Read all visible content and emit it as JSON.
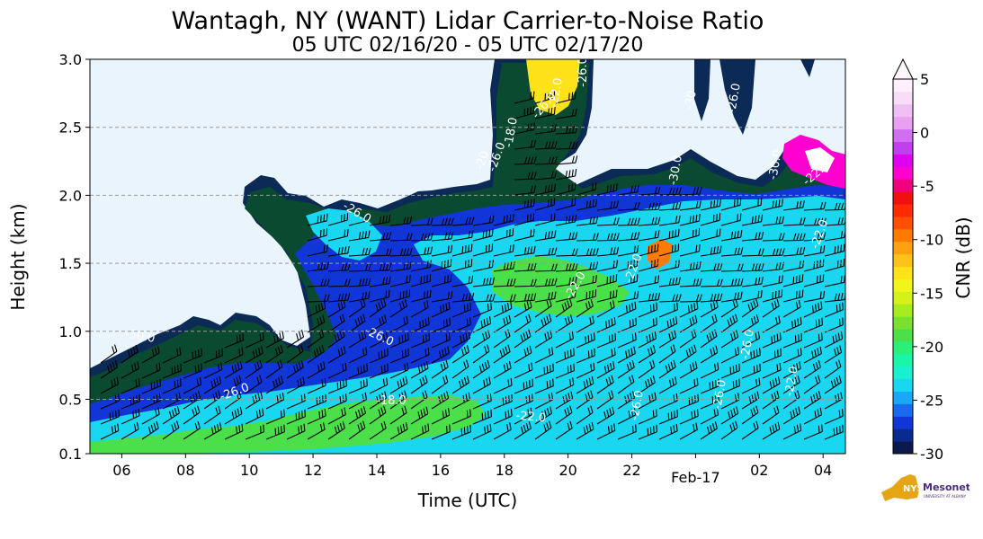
{
  "chart_data": {
    "type": "heatmap",
    "title": "Wantagh, NY (WANT) Lidar Carrier-to-Noise Ratio",
    "subtitle": "05 UTC 02/16/20 - 05 UTC 02/17/20",
    "xlabel": "Time (UTC)",
    "ylabel": "Height (km)",
    "x_ticks": [
      "06",
      "08",
      "10",
      "12",
      "14",
      "16",
      "18",
      "20",
      "22",
      "Feb-17",
      "02",
      "04"
    ],
    "x_tick_hours": [
      6,
      8,
      10,
      12,
      14,
      16,
      18,
      20,
      22,
      24,
      26,
      28
    ],
    "xlim": [
      5.0,
      28.7
    ],
    "y_ticks": [
      "0.1",
      "0.5",
      "1.0",
      "1.5",
      "2.0",
      "2.5",
      "3.0"
    ],
    "y_tick_values": [
      0.1,
      0.5,
      1.0,
      1.5,
      2.0,
      2.5,
      3.0
    ],
    "ylim": [
      0.1,
      3.0
    ],
    "grid": "horizontal dashed",
    "colorbar": {
      "label": "CNR (dB)",
      "ticks": [
        "5",
        "0",
        "-5",
        "-10",
        "-15",
        "-20",
        "-25",
        "-30"
      ],
      "tick_values": [
        5,
        0,
        -5,
        -10,
        -15,
        -20,
        -25,
        -30
      ],
      "range": [
        -30,
        5
      ],
      "extend": "max"
    },
    "contour_labels": [
      "-26.0",
      "-26.0",
      "-26.0",
      "-26.0",
      "-30.0",
      "-18.0",
      "-22.0",
      "-22.0",
      "-26.0",
      "-22.0",
      "-26.0",
      "-22.0",
      "-26.0",
      "-26.0",
      "-30.0",
      "-22.0",
      "-26.0",
      "-30",
      "-26.0",
      "-30.0",
      "-22.0",
      "-20",
      "-18.0",
      "-22.0"
    ],
    "colors": {
      "background_clear": "#eaf4fd",
      "low_cnr": "#0b2a55",
      "dark_green": "#0a4a30",
      "blue": "#1036d8",
      "cyan": "#19d7f0",
      "green": "#4be04a",
      "yellow": "#ffe21a",
      "orange": "#ff7a00",
      "magenta": "#ff00d0"
    }
  },
  "logo": {
    "text": "NYS Mesonet",
    "subtext": "UNIVERSITY AT ALBANY"
  }
}
